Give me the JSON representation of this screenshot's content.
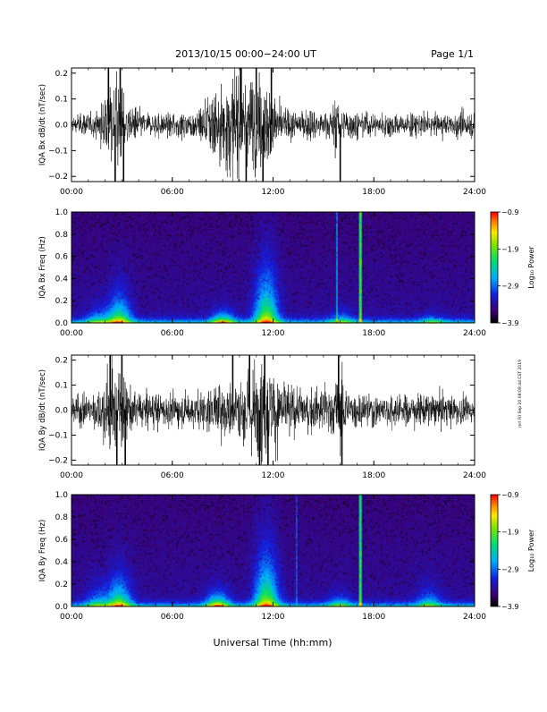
{
  "header": {
    "title": "2013/10/15  00:00−24:00 UT",
    "page": "Page 1/1"
  },
  "footer": {
    "xlabel": "Universal Time (hh:mm)",
    "side_note": "mrl Fri Sep 20 08:09:44 CST 2019"
  },
  "colors": {
    "background": "#ffffff",
    "trace": "#000000",
    "spectrogram_floor": "#2a0a4e"
  },
  "chart_data": [
    {
      "type": "line",
      "ylabel": "IQA Bx dB/dt (nT/sec)",
      "xlim": [
        0,
        24
      ],
      "ylim": [
        -0.22,
        0.22
      ],
      "x_ticks": [
        "00:00",
        "06:00",
        "12:00",
        "18:00",
        "24:00"
      ],
      "y_ticks": [
        "0.2",
        "0.1",
        "0.0",
        "−0.1",
        "−0.2"
      ],
      "y_tick_values": [
        0.2,
        0.1,
        0.0,
        -0.1,
        -0.2
      ],
      "base_amplitude": 0.022,
      "activity": [
        {
          "t": 0.0,
          "a": 0.03
        },
        {
          "t": 1.5,
          "a": 0.045
        },
        {
          "t": 2.1,
          "a": 0.15
        },
        {
          "t": 2.8,
          "a": 0.25
        },
        {
          "t": 3.3,
          "a": 0.09
        },
        {
          "t": 4.5,
          "a": 0.04
        },
        {
          "t": 6.5,
          "a": 0.045
        },
        {
          "t": 7.5,
          "a": 0.07
        },
        {
          "t": 8.2,
          "a": 0.15
        },
        {
          "t": 9.0,
          "a": 0.22
        },
        {
          "t": 9.8,
          "a": 0.25
        },
        {
          "t": 10.5,
          "a": 0.22
        },
        {
          "t": 11.2,
          "a": 0.25
        },
        {
          "t": 11.8,
          "a": 0.18
        },
        {
          "t": 12.5,
          "a": 0.09
        },
        {
          "t": 13.5,
          "a": 0.06
        },
        {
          "t": 15.3,
          "a": 0.06
        },
        {
          "t": 15.8,
          "a": 0.16
        },
        {
          "t": 16.2,
          "a": 0.06
        },
        {
          "t": 18.0,
          "a": 0.04
        },
        {
          "t": 22.0,
          "a": 0.04
        },
        {
          "t": 24.0,
          "a": 0.05
        }
      ],
      "spikes": [
        {
          "t": 2.2,
          "v": 0.22
        },
        {
          "t": 2.6,
          "v": -0.22
        },
        {
          "t": 2.9,
          "v": 0.22
        },
        {
          "t": 3.1,
          "v": -0.22
        },
        {
          "t": 10.1,
          "v": 0.22
        },
        {
          "t": 10.4,
          "v": -0.22
        },
        {
          "t": 11.0,
          "v": 0.22
        },
        {
          "t": 11.4,
          "v": -0.22
        },
        {
          "t": 11.9,
          "v": 0.22
        },
        {
          "t": 16.0,
          "v": -0.22
        }
      ]
    },
    {
      "type": "heatmap",
      "ylabel": "IQA Bx Freq (Hz)",
      "xlim": [
        0,
        24
      ],
      "ylim": [
        0,
        1.0
      ],
      "x_ticks": [
        "00:00",
        "06:00",
        "12:00",
        "18:00",
        "24:00"
      ],
      "y_ticks": [
        "1.0",
        "0.8",
        "0.6",
        "0.4",
        "0.2",
        "0.0"
      ],
      "y_tick_values": [
        1.0,
        0.8,
        0.6,
        0.4,
        0.2,
        0.0
      ],
      "colorbar": {
        "label": "Log₁₀ Power",
        "range": [
          -3.9,
          -0.9
        ],
        "ticks": [
          "−0.9",
          "−1.9",
          "−2.9",
          "−3.9"
        ],
        "tick_values": [
          -0.9,
          -1.9,
          -2.9,
          -3.9
        ]
      },
      "enhancements": [
        {
          "t": 2.8,
          "f_max": 0.3,
          "strength": 0.55
        },
        {
          "t": 1.5,
          "f_max": 0.15,
          "strength": 0.3
        },
        {
          "t": 9.0,
          "f_max": 0.12,
          "strength": 0.5
        },
        {
          "t": 11.6,
          "f_max": 0.55,
          "strength": 0.6
        },
        {
          "t": 16.1,
          "f_max": 0.12,
          "strength": 0.3
        },
        {
          "t": 21.5,
          "f_max": 0.08,
          "strength": 0.25
        }
      ],
      "vertical_lines": [
        {
          "t": 17.2,
          "strength": 0.55
        },
        {
          "t": 15.8,
          "strength": 0.3
        }
      ]
    },
    {
      "type": "line",
      "ylabel": "IQA By dB/dt (nT/sec)",
      "xlim": [
        0,
        24
      ],
      "ylim": [
        -0.22,
        0.22
      ],
      "x_ticks": [
        "00:00",
        "06:00",
        "12:00",
        "18:00",
        "24:00"
      ],
      "y_ticks": [
        "0.2",
        "0.1",
        "0.0",
        "−0.1",
        "−0.2"
      ],
      "y_tick_values": [
        0.2,
        0.1,
        0.0,
        -0.1,
        -0.2
      ],
      "base_amplitude": 0.03,
      "activity": [
        {
          "t": 0.0,
          "a": 0.06
        },
        {
          "t": 1.5,
          "a": 0.07
        },
        {
          "t": 2.2,
          "a": 0.2
        },
        {
          "t": 2.8,
          "a": 0.25
        },
        {
          "t": 3.3,
          "a": 0.12
        },
        {
          "t": 4.5,
          "a": 0.07
        },
        {
          "t": 6.5,
          "a": 0.06
        },
        {
          "t": 7.5,
          "a": 0.08
        },
        {
          "t": 8.5,
          "a": 0.12
        },
        {
          "t": 9.5,
          "a": 0.15
        },
        {
          "t": 10.5,
          "a": 0.2
        },
        {
          "t": 11.3,
          "a": 0.25
        },
        {
          "t": 12.0,
          "a": 0.2
        },
        {
          "t": 13.0,
          "a": 0.12
        },
        {
          "t": 14.0,
          "a": 0.09
        },
        {
          "t": 15.5,
          "a": 0.12
        },
        {
          "t": 16.0,
          "a": 0.2
        },
        {
          "t": 16.5,
          "a": 0.08
        },
        {
          "t": 18.0,
          "a": 0.06
        },
        {
          "t": 21.0,
          "a": 0.06
        },
        {
          "t": 24.0,
          "a": 0.05
        }
      ],
      "spikes": [
        {
          "t": 2.3,
          "v": 0.22
        },
        {
          "t": 2.7,
          "v": -0.22
        },
        {
          "t": 3.0,
          "v": 0.22
        },
        {
          "t": 3.2,
          "v": -0.22
        },
        {
          "t": 9.6,
          "v": 0.22
        },
        {
          "t": 10.6,
          "v": 0.22
        },
        {
          "t": 11.2,
          "v": -0.22
        },
        {
          "t": 11.5,
          "v": 0.22
        },
        {
          "t": 11.7,
          "v": -0.22
        },
        {
          "t": 15.9,
          "v": 0.22
        },
        {
          "t": 16.1,
          "v": -0.22
        }
      ]
    },
    {
      "type": "heatmap",
      "ylabel": "IQA By Freq (Hz)",
      "xlim": [
        0,
        24
      ],
      "ylim": [
        0,
        1.0
      ],
      "x_ticks": [
        "00:00",
        "06:00",
        "12:00",
        "18:00",
        "24:00"
      ],
      "y_ticks": [
        "1.0",
        "0.8",
        "0.6",
        "0.4",
        "0.2",
        "0.0"
      ],
      "y_tick_values": [
        1.0,
        0.8,
        0.6,
        0.4,
        0.2,
        0.0
      ],
      "colorbar": {
        "label": "Log₁₀ Power",
        "range": [
          -3.9,
          -0.9
        ],
        "ticks": [
          "−0.9",
          "−1.9",
          "−2.9",
          "−3.9"
        ],
        "tick_values": [
          -0.9,
          -1.9,
          -2.9,
          -3.9
        ]
      },
      "enhancements": [
        {
          "t": 2.8,
          "f_max": 0.3,
          "strength": 0.55
        },
        {
          "t": 1.5,
          "f_max": 0.2,
          "strength": 0.3
        },
        {
          "t": 8.7,
          "f_max": 0.15,
          "strength": 0.55
        },
        {
          "t": 11.6,
          "f_max": 0.55,
          "strength": 0.6
        },
        {
          "t": 16.0,
          "f_max": 0.12,
          "strength": 0.3
        },
        {
          "t": 21.3,
          "f_max": 0.2,
          "strength": 0.3
        }
      ],
      "vertical_lines": [
        {
          "t": 17.2,
          "strength": 0.5
        },
        {
          "t": 13.4,
          "strength": 0.2
        }
      ]
    }
  ]
}
